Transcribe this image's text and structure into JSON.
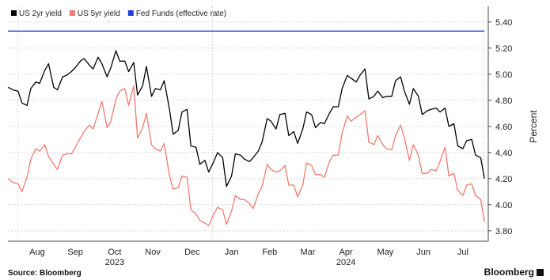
{
  "chart_data": {
    "type": "line",
    "series": [
      {
        "name": "US 2yr yield",
        "color": "#000000",
        "points": [
          [
            "2023-07-24",
            4.9
          ],
          [
            "2023-07-28",
            4.88
          ],
          [
            "2023-08-01",
            4.87
          ],
          [
            "2023-08-04",
            4.78
          ],
          [
            "2023-08-08",
            4.76
          ],
          [
            "2023-08-11",
            4.89
          ],
          [
            "2023-08-15",
            4.94
          ],
          [
            "2023-08-18",
            4.93
          ],
          [
            "2023-08-22",
            5.03
          ],
          [
            "2023-08-25",
            5.08
          ],
          [
            "2023-08-29",
            4.9
          ],
          [
            "2023-09-01",
            4.88
          ],
          [
            "2023-09-05",
            4.98
          ],
          [
            "2023-09-08",
            4.99
          ],
          [
            "2023-09-12",
            5.02
          ],
          [
            "2023-09-15",
            5.05
          ],
          [
            "2023-09-19",
            5.1
          ],
          [
            "2023-09-22",
            5.12
          ],
          [
            "2023-09-26",
            5.07
          ],
          [
            "2023-09-29",
            5.04
          ],
          [
            "2023-10-03",
            5.13
          ],
          [
            "2023-10-06",
            5.08
          ],
          [
            "2023-10-10",
            4.98
          ],
          [
            "2023-10-13",
            5.05
          ],
          [
            "2023-10-17",
            5.18
          ],
          [
            "2023-10-20",
            5.1
          ],
          [
            "2023-10-24",
            5.1
          ],
          [
            "2023-10-27",
            5.02
          ],
          [
            "2023-10-31",
            5.09
          ],
          [
            "2023-11-03",
            4.84
          ],
          [
            "2023-11-07",
            4.91
          ],
          [
            "2023-11-10",
            5.06
          ],
          [
            "2023-11-14",
            4.83
          ],
          [
            "2023-11-17",
            4.89
          ],
          [
            "2023-11-21",
            4.88
          ],
          [
            "2023-11-24",
            4.95
          ],
          [
            "2023-11-28",
            4.74
          ],
          [
            "2023-12-01",
            4.54
          ],
          [
            "2023-12-05",
            4.57
          ],
          [
            "2023-12-08",
            4.71
          ],
          [
            "2023-12-12",
            4.73
          ],
          [
            "2023-12-15",
            4.45
          ],
          [
            "2023-12-19",
            4.44
          ],
          [
            "2023-12-22",
            4.31
          ],
          [
            "2023-12-26",
            4.34
          ],
          [
            "2023-12-29",
            4.25
          ],
          [
            "2024-01-02",
            4.33
          ],
          [
            "2024-01-05",
            4.4
          ],
          [
            "2024-01-09",
            4.36
          ],
          [
            "2024-01-12",
            4.14
          ],
          [
            "2024-01-16",
            4.22
          ],
          [
            "2024-01-19",
            4.39
          ],
          [
            "2024-01-23",
            4.38
          ],
          [
            "2024-01-26",
            4.35
          ],
          [
            "2024-01-30",
            4.33
          ],
          [
            "2024-02-02",
            4.36
          ],
          [
            "2024-02-06",
            4.41
          ],
          [
            "2024-02-09",
            4.48
          ],
          [
            "2024-02-13",
            4.66
          ],
          [
            "2024-02-16",
            4.64
          ],
          [
            "2024-02-20",
            4.58
          ],
          [
            "2024-02-23",
            4.69
          ],
          [
            "2024-02-27",
            4.7
          ],
          [
            "2024-03-01",
            4.53
          ],
          [
            "2024-03-05",
            4.56
          ],
          [
            "2024-03-08",
            4.47
          ],
          [
            "2024-03-12",
            4.58
          ],
          [
            "2024-03-15",
            4.71
          ],
          [
            "2024-03-19",
            4.69
          ],
          [
            "2024-03-22",
            4.59
          ],
          [
            "2024-03-26",
            4.63
          ],
          [
            "2024-03-29",
            4.62
          ],
          [
            "2024-04-02",
            4.7
          ],
          [
            "2024-04-05",
            4.75
          ],
          [
            "2024-04-09",
            4.75
          ],
          [
            "2024-04-12",
            4.89
          ],
          [
            "2024-04-16",
            4.99
          ],
          [
            "2024-04-19",
            4.97
          ],
          [
            "2024-04-23",
            4.94
          ],
          [
            "2024-04-26",
            4.99
          ],
          [
            "2024-04-30",
            5.04
          ],
          [
            "2024-05-03",
            4.81
          ],
          [
            "2024-05-07",
            4.83
          ],
          [
            "2024-05-10",
            4.87
          ],
          [
            "2024-05-14",
            4.82
          ],
          [
            "2024-05-17",
            4.83
          ],
          [
            "2024-05-21",
            4.83
          ],
          [
            "2024-05-24",
            4.95
          ],
          [
            "2024-05-28",
            4.98
          ],
          [
            "2024-05-31",
            4.87
          ],
          [
            "2024-06-04",
            4.77
          ],
          [
            "2024-06-07",
            4.89
          ],
          [
            "2024-06-11",
            4.83
          ],
          [
            "2024-06-14",
            4.69
          ],
          [
            "2024-06-18",
            4.72
          ],
          [
            "2024-06-21",
            4.73
          ],
          [
            "2024-06-25",
            4.74
          ],
          [
            "2024-06-28",
            4.71
          ],
          [
            "2024-07-02",
            4.74
          ],
          [
            "2024-07-05",
            4.6
          ],
          [
            "2024-07-09",
            4.62
          ],
          [
            "2024-07-12",
            4.45
          ],
          [
            "2024-07-16",
            4.43
          ],
          [
            "2024-07-19",
            4.49
          ],
          [
            "2024-07-23",
            4.5
          ],
          [
            "2024-07-26",
            4.38
          ],
          [
            "2024-07-30",
            4.36
          ],
          [
            "2024-08-02",
            4.2
          ]
        ]
      },
      {
        "name": "US 5yr yield",
        "color": "#f07b70",
        "points": [
          [
            "2023-07-24",
            4.2
          ],
          [
            "2023-07-28",
            4.17
          ],
          [
            "2023-08-01",
            4.16
          ],
          [
            "2023-08-04",
            4.1
          ],
          [
            "2023-08-08",
            4.21
          ],
          [
            "2023-08-11",
            4.35
          ],
          [
            "2023-08-15",
            4.43
          ],
          [
            "2023-08-18",
            4.41
          ],
          [
            "2023-08-22",
            4.46
          ],
          [
            "2023-08-25",
            4.37
          ],
          [
            "2023-08-29",
            4.31
          ],
          [
            "2023-09-01",
            4.27
          ],
          [
            "2023-09-05",
            4.38
          ],
          [
            "2023-09-08",
            4.39
          ],
          [
            "2023-09-12",
            4.39
          ],
          [
            "2023-09-15",
            4.44
          ],
          [
            "2023-09-19",
            4.51
          ],
          [
            "2023-09-22",
            4.56
          ],
          [
            "2023-09-26",
            4.61
          ],
          [
            "2023-09-29",
            4.58
          ],
          [
            "2023-10-03",
            4.7
          ],
          [
            "2023-10-06",
            4.79
          ],
          [
            "2023-10-10",
            4.59
          ],
          [
            "2023-10-13",
            4.64
          ],
          [
            "2023-10-17",
            4.81
          ],
          [
            "2023-10-20",
            4.87
          ],
          [
            "2023-10-24",
            4.89
          ],
          [
            "2023-10-27",
            4.76
          ],
          [
            "2023-10-31",
            4.91
          ],
          [
            "2023-11-03",
            4.51
          ],
          [
            "2023-11-07",
            4.59
          ],
          [
            "2023-11-10",
            4.7
          ],
          [
            "2023-11-14",
            4.46
          ],
          [
            "2023-11-17",
            4.43
          ],
          [
            "2023-11-21",
            4.41
          ],
          [
            "2023-11-24",
            4.47
          ],
          [
            "2023-11-28",
            4.23
          ],
          [
            "2023-12-01",
            4.12
          ],
          [
            "2023-12-05",
            4.13
          ],
          [
            "2023-12-08",
            4.22
          ],
          [
            "2023-12-12",
            4.21
          ],
          [
            "2023-12-15",
            3.96
          ],
          [
            "2023-12-19",
            3.93
          ],
          [
            "2023-12-22",
            3.88
          ],
          [
            "2023-12-26",
            3.86
          ],
          [
            "2023-12-29",
            3.84
          ],
          [
            "2024-01-02",
            3.93
          ],
          [
            "2024-01-05",
            3.98
          ],
          [
            "2024-01-09",
            3.96
          ],
          [
            "2024-01-12",
            3.85
          ],
          [
            "2024-01-16",
            3.95
          ],
          [
            "2024-01-19",
            4.07
          ],
          [
            "2024-01-23",
            4.04
          ],
          [
            "2024-01-26",
            4.04
          ],
          [
            "2024-01-30",
            4.01
          ],
          [
            "2024-02-02",
            3.97
          ],
          [
            "2024-02-06",
            4.08
          ],
          [
            "2024-02-09",
            4.14
          ],
          [
            "2024-02-13",
            4.31
          ],
          [
            "2024-02-16",
            4.27
          ],
          [
            "2024-02-20",
            4.25
          ],
          [
            "2024-02-23",
            4.26
          ],
          [
            "2024-02-27",
            4.3
          ],
          [
            "2024-03-01",
            4.15
          ],
          [
            "2024-03-05",
            4.15
          ],
          [
            "2024-03-08",
            4.06
          ],
          [
            "2024-03-12",
            4.15
          ],
          [
            "2024-03-15",
            4.32
          ],
          [
            "2024-03-19",
            4.3
          ],
          [
            "2024-03-22",
            4.23
          ],
          [
            "2024-03-26",
            4.23
          ],
          [
            "2024-03-29",
            4.21
          ],
          [
            "2024-04-02",
            4.33
          ],
          [
            "2024-04-05",
            4.38
          ],
          [
            "2024-04-09",
            4.38
          ],
          [
            "2024-04-12",
            4.55
          ],
          [
            "2024-04-16",
            4.68
          ],
          [
            "2024-04-19",
            4.64
          ],
          [
            "2024-04-23",
            4.67
          ],
          [
            "2024-04-26",
            4.69
          ],
          [
            "2024-04-30",
            4.72
          ],
          [
            "2024-05-03",
            4.48
          ],
          [
            "2024-05-07",
            4.46
          ],
          [
            "2024-05-10",
            4.53
          ],
          [
            "2024-05-14",
            4.46
          ],
          [
            "2024-05-17",
            4.43
          ],
          [
            "2024-05-21",
            4.42
          ],
          [
            "2024-05-24",
            4.53
          ],
          [
            "2024-05-28",
            4.61
          ],
          [
            "2024-05-31",
            4.51
          ],
          [
            "2024-06-04",
            4.34
          ],
          [
            "2024-06-07",
            4.46
          ],
          [
            "2024-06-11",
            4.38
          ],
          [
            "2024-06-14",
            4.24
          ],
          [
            "2024-06-18",
            4.24
          ],
          [
            "2024-06-21",
            4.27
          ],
          [
            "2024-06-25",
            4.26
          ],
          [
            "2024-06-28",
            4.33
          ],
          [
            "2024-07-02",
            4.44
          ],
          [
            "2024-07-05",
            4.22
          ],
          [
            "2024-07-09",
            4.24
          ],
          [
            "2024-07-12",
            4.11
          ],
          [
            "2024-07-16",
            4.07
          ],
          [
            "2024-07-19",
            4.15
          ],
          [
            "2024-07-23",
            4.16
          ],
          [
            "2024-07-26",
            4.07
          ],
          [
            "2024-07-30",
            4.04
          ],
          [
            "2024-08-02",
            3.87
          ]
        ]
      },
      {
        "name": "Fed Funds (effective rate)",
        "color": "#1f3fd6",
        "points": [
          [
            "2023-07-24",
            5.33
          ],
          [
            "2024-08-02",
            5.33
          ]
        ]
      }
    ],
    "title": "",
    "xlabel": "",
    "ylabel": "Percent",
    "ylim": [
      3.72,
      5.52
    ],
    "yticks": [
      "3.80",
      "4.00",
      "4.20",
      "4.40",
      "4.60",
      "4.80",
      "5.00",
      "5.20",
      "5.40"
    ],
    "xlim": [
      "2023-07-24",
      "2024-08-05"
    ],
    "month_ticks": [
      {
        "label": "Aug",
        "date": "2023-08-16"
      },
      {
        "label": "Sep",
        "date": "2023-09-15"
      },
      {
        "label": "Oct",
        "date": "2023-10-16"
      },
      {
        "label": "Nov",
        "date": "2023-11-15"
      },
      {
        "label": "Dec",
        "date": "2023-12-16"
      },
      {
        "label": "Jan",
        "date": "2024-01-16"
      },
      {
        "label": "Feb",
        "date": "2024-02-15"
      },
      {
        "label": "Mar",
        "date": "2024-03-16"
      },
      {
        "label": "Apr",
        "date": "2024-04-15"
      },
      {
        "label": "May",
        "date": "2024-05-16"
      },
      {
        "label": "Jun",
        "date": "2024-06-15"
      },
      {
        "label": "Jul",
        "date": "2024-07-16"
      }
    ],
    "year_ticks": [
      {
        "label": "2023",
        "date": "2023-10-16"
      },
      {
        "label": "2024",
        "date": "2024-04-15"
      }
    ],
    "year_boundaries": [
      "2023-08-01",
      "2024-01-01",
      "2024-08-01"
    ],
    "grid": true,
    "legend_position": "top-left"
  },
  "footer": {
    "source": "Source: Bloomberg",
    "brand": "Bloomberg"
  }
}
